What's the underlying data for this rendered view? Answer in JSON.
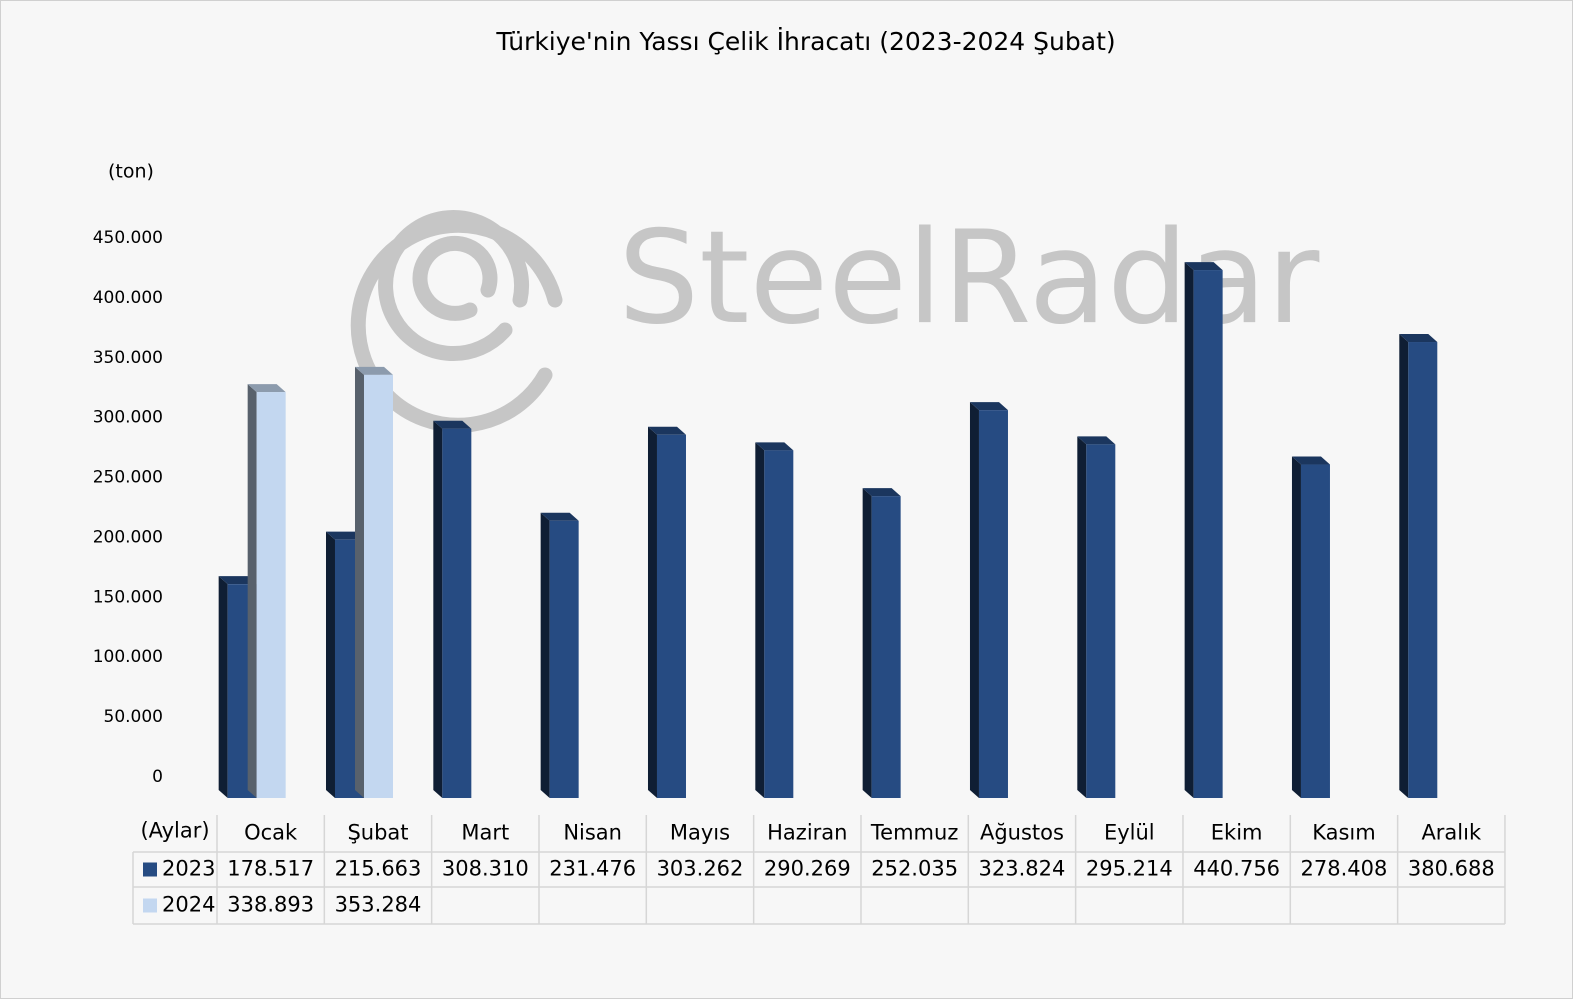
{
  "chart_data": {
    "type": "bar",
    "title": "Türkiye'nin Yassı Çelik İhracatı (2023-2024 Şubat)",
    "y_label": "(ton)",
    "table_header": "(Aylar)",
    "watermark": "SteelRadar",
    "categories": [
      "Ocak",
      "Şubat",
      "Mart",
      "Nisan",
      "Mayıs",
      "Haziran",
      "Temmuz",
      "Ağustos",
      "Eylül",
      "Ekim",
      "Kasım",
      "Aralık"
    ],
    "series": [
      {
        "name": "2023",
        "color": "#264b82",
        "values": [
          178517,
          215663,
          308310,
          231476,
          303262,
          290269,
          252035,
          323824,
          295214,
          440756,
          278408,
          380688
        ],
        "value_labels": [
          "178.517",
          "215.663",
          "308.310",
          "231.476",
          "303.262",
          "290.269",
          "252.035",
          "323.824",
          "295.214",
          "440.756",
          "278.408",
          "380.688"
        ]
      },
      {
        "name": "2024",
        "color": "#c3d7f0",
        "values": [
          338893,
          353284,
          null,
          null,
          null,
          null,
          null,
          null,
          null,
          null,
          null,
          null
        ],
        "value_labels": [
          "338.893",
          "353.284",
          null,
          null,
          null,
          null,
          null,
          null,
          null,
          null,
          null,
          null
        ]
      }
    ],
    "ylim": [
      0,
      450000
    ],
    "yticks": [
      0,
      {
        "value": 50000,
        "label": "50.000"
      },
      {
        "value": 100000,
        "label": "100.000"
      },
      {
        "value": 150000,
        "label": "150.000"
      },
      {
        "value": 200000,
        "label": "200.000"
      },
      {
        "value": 250000,
        "label": "250.000"
      },
      {
        "value": 300000,
        "label": "300.000"
      },
      {
        "value": 350000,
        "label": "350.000"
      },
      {
        "value": 400000,
        "label": "400.000"
      },
      {
        "value": 450000,
        "label": "450.000"
      }
    ],
    "grid": false
  }
}
